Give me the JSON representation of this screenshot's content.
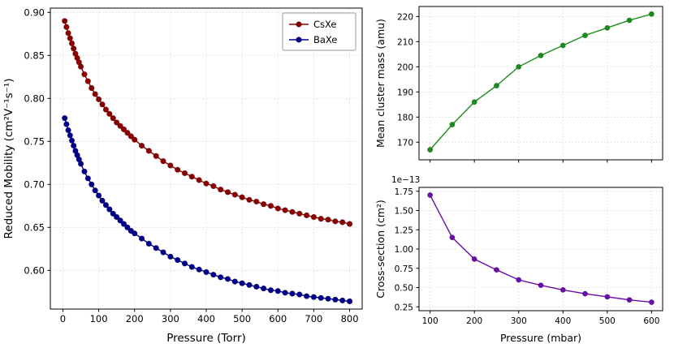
{
  "figure": {
    "background": "#ffffff"
  },
  "chart_data": [
    {
      "id": "mobility",
      "type": "line",
      "title": "",
      "xlabel": "Pressure (Torr)",
      "ylabel": "Reduced Mobility (cm²V⁻¹s⁻¹)",
      "xlim": [
        -35,
        835
      ],
      "ylim": [
        0.555,
        0.905
      ],
      "xticks": [
        0,
        100,
        200,
        300,
        400,
        500,
        600,
        700,
        800
      ],
      "xticklabels": [
        "0",
        "100",
        "200",
        "300",
        "400",
        "500",
        "600",
        "700",
        "800"
      ],
      "yticks": [
        0.6,
        0.65,
        0.7,
        0.75,
        0.8,
        0.85,
        0.9
      ],
      "yticklabels": [
        "0.60",
        "0.65",
        "0.70",
        "0.75",
        "0.80",
        "0.85",
        "0.90"
      ],
      "grid": true,
      "legend": {
        "show": true,
        "position": "top-right"
      },
      "series": [
        {
          "name": "CsXe",
          "color": "#8b0000",
          "x": [
            5,
            10,
            15,
            20,
            25,
            30,
            35,
            40,
            45,
            50,
            60,
            70,
            80,
            90,
            100,
            110,
            120,
            130,
            140,
            150,
            160,
            170,
            180,
            190,
            200,
            220,
            240,
            260,
            280,
            300,
            320,
            340,
            360,
            380,
            400,
            420,
            440,
            460,
            480,
            500,
            520,
            540,
            560,
            580,
            600,
            620,
            640,
            660,
            680,
            700,
            720,
            740,
            760,
            780,
            800
          ],
          "y": [
            0.89,
            0.883,
            0.876,
            0.87,
            0.864,
            0.858,
            0.852,
            0.847,
            0.842,
            0.837,
            0.828,
            0.82,
            0.812,
            0.805,
            0.799,
            0.793,
            0.787,
            0.782,
            0.777,
            0.772,
            0.768,
            0.764,
            0.76,
            0.756,
            0.752,
            0.745,
            0.739,
            0.733,
            0.727,
            0.722,
            0.717,
            0.713,
            0.709,
            0.705,
            0.701,
            0.698,
            0.694,
            0.691,
            0.688,
            0.685,
            0.682,
            0.68,
            0.677,
            0.675,
            0.672,
            0.67,
            0.668,
            0.666,
            0.664,
            0.662,
            0.66,
            0.659,
            0.657,
            0.656,
            0.654
          ]
        },
        {
          "name": "BaXe",
          "color": "#00008b",
          "x": [
            5,
            10,
            15,
            20,
            25,
            30,
            35,
            40,
            45,
            50,
            60,
            70,
            80,
            90,
            100,
            110,
            120,
            130,
            140,
            150,
            160,
            170,
            180,
            190,
            200,
            220,
            240,
            260,
            280,
            300,
            320,
            340,
            360,
            380,
            400,
            420,
            440,
            460,
            480,
            500,
            520,
            540,
            560,
            580,
            600,
            620,
            640,
            660,
            680,
            700,
            720,
            740,
            760,
            780,
            800
          ],
          "y": [
            0.777,
            0.77,
            0.763,
            0.757,
            0.751,
            0.745,
            0.739,
            0.734,
            0.729,
            0.724,
            0.715,
            0.707,
            0.7,
            0.693,
            0.687,
            0.681,
            0.676,
            0.671,
            0.666,
            0.662,
            0.658,
            0.654,
            0.65,
            0.646,
            0.643,
            0.637,
            0.631,
            0.626,
            0.621,
            0.616,
            0.612,
            0.608,
            0.604,
            0.601,
            0.598,
            0.595,
            0.592,
            0.59,
            0.587,
            0.585,
            0.583,
            0.581,
            0.579,
            0.577,
            0.576,
            0.574,
            0.573,
            0.572,
            0.57,
            0.569,
            0.568,
            0.567,
            0.566,
            0.565,
            0.564
          ]
        }
      ]
    },
    {
      "id": "mass",
      "type": "line",
      "title": "",
      "xlabel": "",
      "ylabel": "Mean cluster mass (amu)",
      "xlim": [
        75,
        625
      ],
      "ylim": [
        163,
        224
      ],
      "xticks": [
        100,
        200,
        300,
        400,
        500,
        600
      ],
      "xticklabels": [],
      "yticks": [
        170,
        180,
        190,
        200,
        210,
        220
      ],
      "yticklabels": [
        "170",
        "180",
        "190",
        "200",
        "210",
        "220"
      ],
      "grid": true,
      "legend": {
        "show": false
      },
      "series": [
        {
          "name": "Mean cluster mass",
          "color": "#1a8c1a",
          "x": [
            100,
            150,
            200,
            250,
            300,
            350,
            400,
            450,
            500,
            550,
            600
          ],
          "y": [
            167,
            177,
            186,
            192.5,
            200,
            204.5,
            208.5,
            212.5,
            215.5,
            218.5,
            221
          ]
        }
      ]
    },
    {
      "id": "xsec",
      "type": "line",
      "title": "",
      "xlabel": "Pressure (mbar)",
      "ylabel": "Cross-section (cm²)",
      "offset_label": "1e−13",
      "xlim": [
        75,
        625
      ],
      "ylim": [
        0.2,
        1.8
      ],
      "xticks": [
        100,
        200,
        300,
        400,
        500,
        600
      ],
      "xticklabels": [
        "100",
        "200",
        "300",
        "400",
        "500",
        "600"
      ],
      "yticks": [
        0.25,
        0.5,
        0.75,
        1.0,
        1.25,
        1.5,
        1.75
      ],
      "yticklabels": [
        "0.25",
        "0.50",
        "0.75",
        "1.00",
        "1.25",
        "1.50",
        "1.75"
      ],
      "grid": true,
      "legend": {
        "show": false
      },
      "series": [
        {
          "name": "Cross-section",
          "color": "#6a0dad",
          "x": [
            100,
            150,
            200,
            250,
            300,
            350,
            400,
            450,
            500,
            550,
            600
          ],
          "y": [
            1.7,
            1.15,
            0.87,
            0.73,
            0.6,
            0.53,
            0.47,
            0.42,
            0.38,
            0.34,
            0.31
          ]
        }
      ]
    }
  ]
}
